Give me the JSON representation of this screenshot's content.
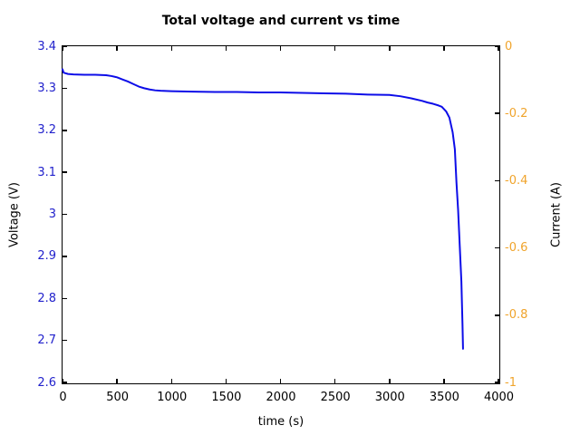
{
  "title": "Total voltage and current vs time",
  "colors": {
    "line": "#0d0de8",
    "left_tick_text": "#2222cc",
    "right_tick_text": "#f0a42c",
    "axis": "#000000",
    "background": "#ffffff"
  },
  "axes": {
    "x": {
      "label": "time (s)",
      "min": 0,
      "max": 4000,
      "tick_values": [
        0,
        500,
        1000,
        1500,
        2000,
        2500,
        3000,
        3500,
        4000
      ],
      "tick_labels": [
        "0",
        "500",
        "1000",
        "1500",
        "2000",
        "2500",
        "3000",
        "3500",
        "4000"
      ]
    },
    "y_left": {
      "label": "Voltage (V)",
      "min": 2.6,
      "max": 3.4,
      "tick_values": [
        3.4,
        3.3,
        3.2,
        3.1,
        3.0,
        2.9,
        2.8,
        2.7,
        2.6
      ],
      "tick_labels": [
        "3.4",
        "3.3",
        "3.2",
        "3.1",
        "3",
        "2.9",
        "2.8",
        "2.7",
        "2.6"
      ]
    },
    "y_right": {
      "label": "Current (A)",
      "min": -1,
      "max": 0,
      "tick_values": [
        0,
        -0.2,
        -0.4,
        -0.6,
        -0.8,
        -1
      ],
      "tick_labels": [
        "0",
        "-0.2",
        "-0.4",
        "-0.6",
        "-0.8",
        "-1"
      ]
    }
  },
  "chart_data": {
    "type": "line",
    "title": "Total voltage and current vs time",
    "xlabel": "time (s)",
    "ylabel_left": "Voltage (V)",
    "ylabel_right": "Current (A)",
    "xlim": [
      0,
      4000
    ],
    "ylim_left": [
      2.6,
      3.4
    ],
    "ylim_right": [
      -1,
      0
    ],
    "grid": false,
    "legend": "none",
    "box_style": "closed-box-inward-ticks",
    "series": [
      {
        "name": "Total voltage",
        "axis": "left",
        "color": "#0d0de8",
        "x": [
          0,
          10,
          50,
          100,
          200,
          300,
          400,
          450,
          500,
          550,
          600,
          650,
          700,
          750,
          800,
          850,
          900,
          1000,
          1200,
          1400,
          1600,
          1800,
          2000,
          2200,
          2400,
          2600,
          2800,
          3000,
          3100,
          3200,
          3300,
          3350,
          3400,
          3450,
          3480,
          3520,
          3550,
          3580,
          3600,
          3615,
          3630,
          3645,
          3660,
          3670,
          3675
        ],
        "y": [
          3.345,
          3.337,
          3.334,
          3.333,
          3.332,
          3.332,
          3.331,
          3.329,
          3.326,
          3.321,
          3.316,
          3.31,
          3.304,
          3.3,
          3.297,
          3.295,
          3.294,
          3.293,
          3.292,
          3.291,
          3.291,
          3.29,
          3.29,
          3.289,
          3.288,
          3.287,
          3.285,
          3.284,
          3.281,
          3.276,
          3.27,
          3.266,
          3.263,
          3.259,
          3.256,
          3.245,
          3.23,
          3.195,
          3.155,
          3.075,
          3.01,
          2.925,
          2.84,
          2.74,
          2.68
        ]
      }
    ]
  }
}
